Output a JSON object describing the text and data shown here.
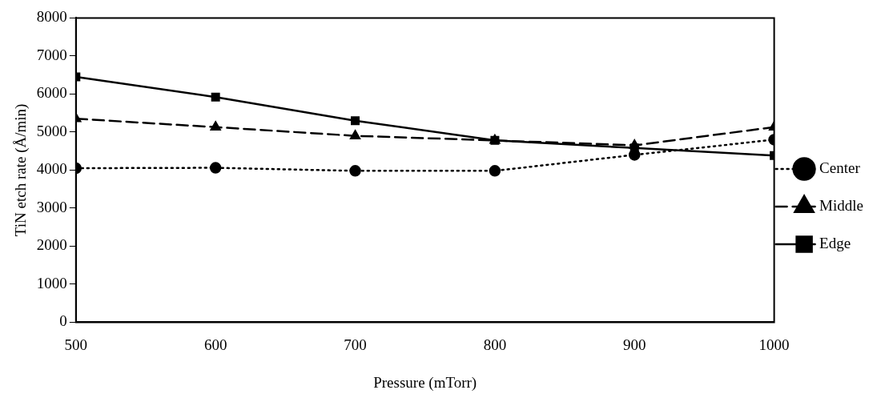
{
  "chart_data": {
    "type": "line",
    "xlabel": "Pressure (mTorr)",
    "ylabel": "TiN etch rate (Å/min)",
    "x": [
      500,
      600,
      700,
      800,
      900,
      1000
    ],
    "xlim": [
      500,
      1000
    ],
    "xticks": [
      500,
      600,
      700,
      800,
      900,
      1000
    ],
    "ylim": [
      0,
      8000
    ],
    "yticks": [
      0,
      1000,
      2000,
      3000,
      4000,
      5000,
      6000,
      7000,
      8000
    ],
    "grid": false,
    "legend": "right",
    "series": [
      {
        "name": "Center",
        "color": "#000000",
        "marker": "circle",
        "line_style": "dotted",
        "values": [
          4050,
          4060,
          3980,
          3980,
          4400,
          4800
        ]
      },
      {
        "name": "Middle",
        "color": "#000000",
        "marker": "triangle",
        "line_style": "dashed",
        "values": [
          5350,
          5130,
          4900,
          4780,
          4650,
          5130
        ]
      },
      {
        "name": "Edge",
        "color": "#000000",
        "marker": "square",
        "line_style": "solid",
        "values": [
          6450,
          5920,
          5300,
          4780,
          4580,
          4380
        ]
      }
    ]
  }
}
